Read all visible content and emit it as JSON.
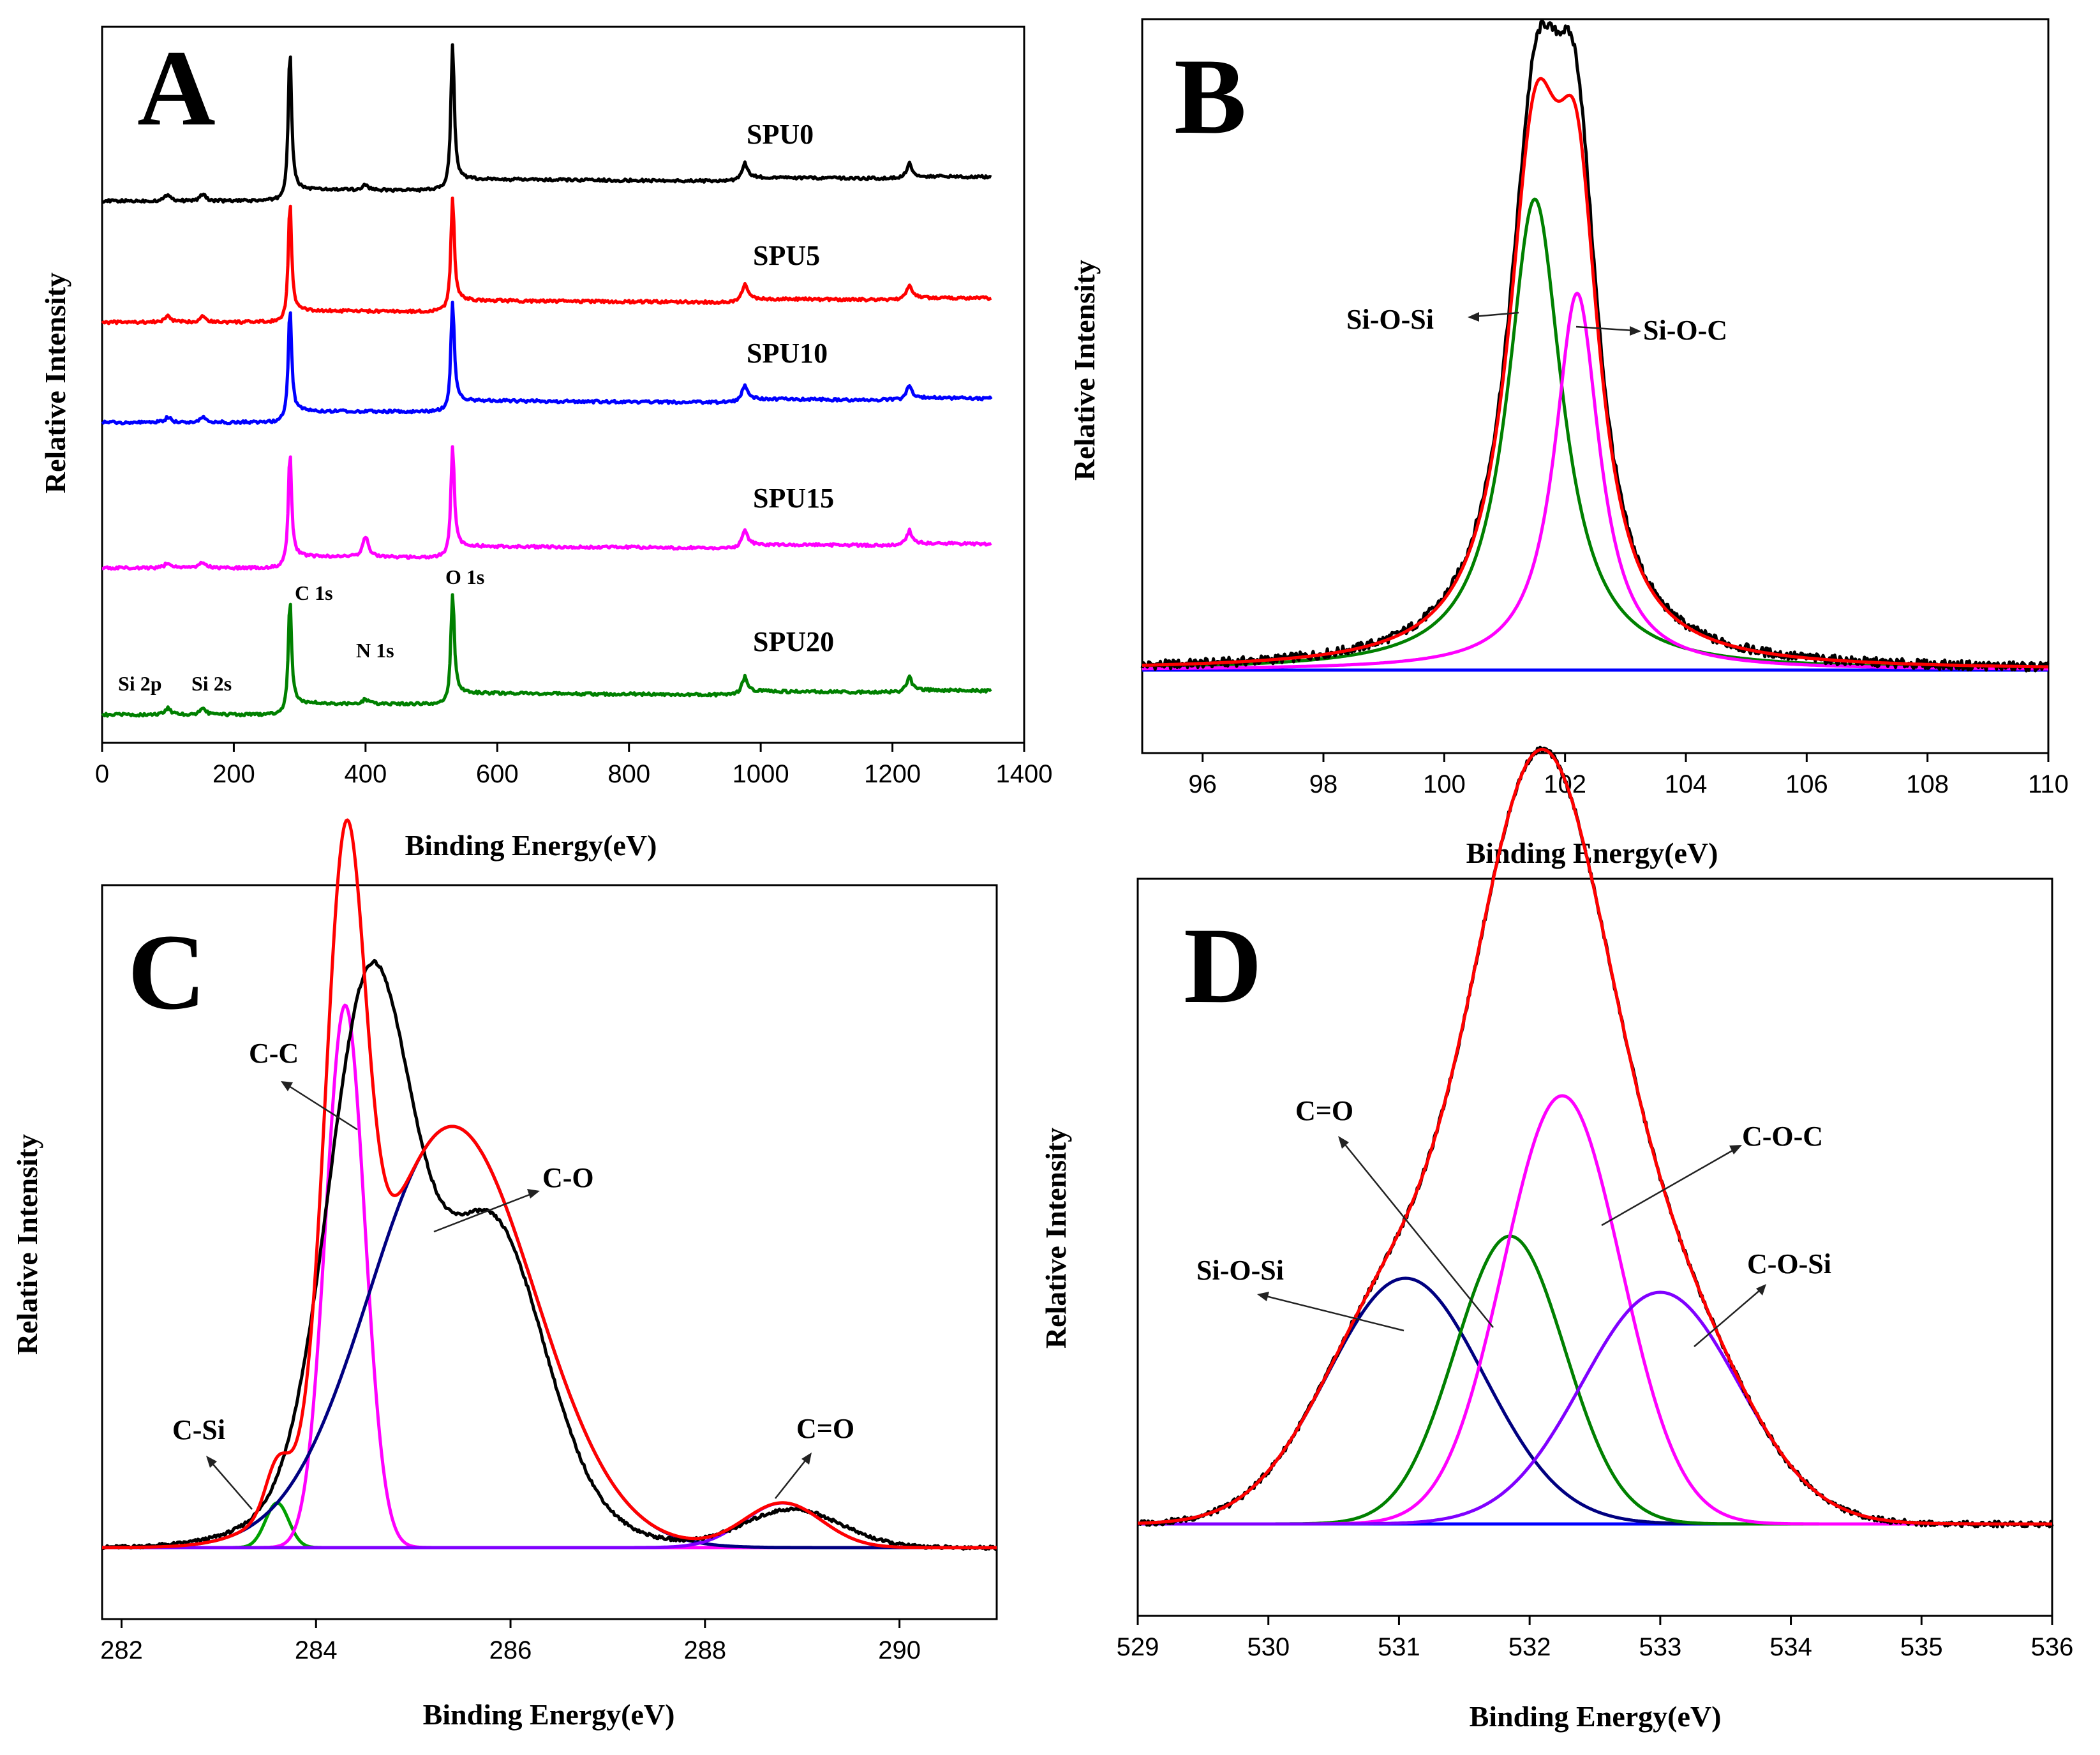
{
  "panels": [
    {
      "id": "A",
      "tag": "A",
      "chart_data": {
        "type": "line",
        "xlabel": "Binding Energy(eV)",
        "ylabel": "Relative Intensity",
        "xlim": [
          0,
          1400
        ],
        "xticks": [
          0,
          200,
          400,
          600,
          800,
          1000,
          1200,
          1400
        ],
        "series": [
          {
            "name": "SPU0",
            "color": "#000000",
            "offset": 4,
            "peaks": [
              [
                100,
                0.15
              ],
              [
                153,
                0.15
              ],
              [
                285,
                3.2
              ],
              [
                400,
                0.12
              ],
              [
                532,
                3.2
              ],
              [
                975,
                0.35
              ],
              [
                1225,
                0.3
              ]
            ]
          },
          {
            "name": "SPU5",
            "color": "#ff0000",
            "offset": 3,
            "peaks": [
              [
                100,
                0.15
              ],
              [
                153,
                0.15
              ],
              [
                285,
                2.5
              ],
              [
                532,
                2.5
              ],
              [
                975,
                0.35
              ],
              [
                1225,
                0.3
              ]
            ]
          },
          {
            "name": "SPU10",
            "color": "#0000ff",
            "offset": 2,
            "peaks": [
              [
                100,
                0.12
              ],
              [
                153,
                0.12
              ],
              [
                285,
                2.4
              ],
              [
                532,
                2.4
              ],
              [
                975,
                0.35
              ],
              [
                1225,
                0.3
              ]
            ]
          },
          {
            "name": "SPU15",
            "color": "#ff00ff",
            "offset": 1,
            "peaks": [
              [
                100,
                0.12
              ],
              [
                153,
                0.12
              ],
              [
                285,
                2.4
              ],
              [
                400,
                0.45
              ],
              [
                532,
                2.4
              ],
              [
                975,
                0.35
              ],
              [
                1225,
                0.3
              ]
            ]
          },
          {
            "name": "SPU20",
            "color": "#008000",
            "offset": 0,
            "peaks": [
              [
                100,
                0.15
              ],
              [
                153,
                0.15
              ],
              [
                285,
                2.4
              ],
              [
                400,
                0.1
              ],
              [
                532,
                2.4
              ],
              [
                975,
                0.35
              ],
              [
                1225,
                0.3
              ]
            ]
          }
        ],
        "annotations": [
          "Si 2p",
          "Si 2s",
          "C 1s",
          "N 1s",
          "O 1s"
        ]
      }
    },
    {
      "id": "B",
      "tag": "B",
      "chart_data": {
        "type": "line",
        "xlabel": "Binding Energy(eV)",
        "ylabel": "Relative Intensity",
        "xlim": [
          95,
          110
        ],
        "xticks": [
          96,
          98,
          100,
          102,
          104,
          106,
          108,
          110
        ],
        "components": [
          {
            "name": "Si-O-Si",
            "color": "#008000",
            "center": 101.5,
            "height": 0.9,
            "width": 0.55
          },
          {
            "name": "Si-O-C",
            "color": "#ff00ff",
            "center": 102.2,
            "height": 0.72,
            "width": 0.45
          }
        ],
        "lines": [
          {
            "name": "raw",
            "color": "#000000"
          },
          {
            "name": "fit",
            "color": "#ff0000"
          },
          {
            "name": "baseline",
            "color": "#0000ff"
          }
        ]
      }
    },
    {
      "id": "C",
      "tag": "C",
      "chart_data": {
        "type": "line",
        "xlabel": "Binding Energy(eV)",
        "ylabel": "Relative Intensity",
        "xlim": [
          281.8,
          291
        ],
        "xticks": [
          282,
          284,
          286,
          288,
          290
        ],
        "components": [
          {
            "name": "C-Si",
            "color": "#00a000",
            "center": 283.6,
            "height": 0.07,
            "width": 0.12
          },
          {
            "name": "C-C",
            "color": "#ff00ff",
            "center": 284.3,
            "height": 0.85,
            "width": 0.2
          },
          {
            "name": "C-O",
            "color": "#000080",
            "center": 285.4,
            "height": 0.66,
            "width": 0.85
          },
          {
            "name": "C=O",
            "color": "#8000ff",
            "center": 288.8,
            "height": 0.07,
            "width": 0.4
          }
        ],
        "lines": [
          {
            "name": "raw",
            "color": "#000000"
          },
          {
            "name": "fit",
            "color": "#ff0000"
          },
          {
            "name": "baseline",
            "color": "#0000ff"
          }
        ]
      }
    },
    {
      "id": "D",
      "tag": "D",
      "chart_data": {
        "type": "line",
        "xlabel": "Binding Energy(eV)",
        "ylabel": "Relative Intensity",
        "xlim": [
          529,
          536
        ],
        "xticks": [
          529,
          530,
          531,
          532,
          533,
          534,
          535,
          536
        ],
        "components": [
          {
            "name": "Si-O-Si",
            "color": "#000080",
            "center": 531.05,
            "height": 0.35,
            "width": 0.6
          },
          {
            "name": "C=O",
            "color": "#008000",
            "center": 531.85,
            "height": 0.41,
            "width": 0.42
          },
          {
            "name": "C-O-C",
            "color": "#ff00ff",
            "center": 532.25,
            "height": 0.61,
            "width": 0.45
          },
          {
            "name": "C-O-Si",
            "color": "#8000ff",
            "center": 533.0,
            "height": 0.33,
            "width": 0.6
          }
        ],
        "lines": [
          {
            "name": "raw",
            "color": "#000000"
          },
          {
            "name": "fit",
            "color": "#ff0000"
          },
          {
            "name": "baseline",
            "color": "#0000ff"
          }
        ]
      }
    }
  ]
}
